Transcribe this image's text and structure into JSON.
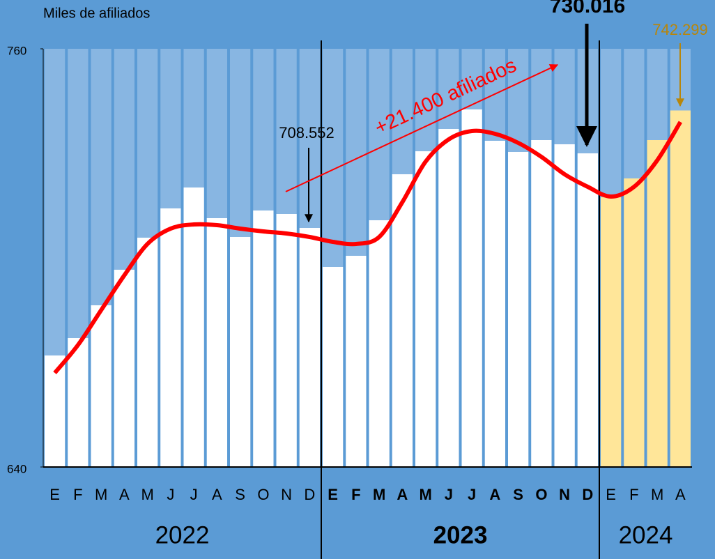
{
  "chart_data": {
    "type": "bar",
    "y_axis_label": "Miles de afiliados",
    "ylim": [
      640,
      760
    ],
    "yticks": [
      640,
      760
    ],
    "groups": [
      {
        "label": "2022",
        "color": "#ffffff",
        "bold": false,
        "categories": [
          "E",
          "F",
          "M",
          "A",
          "M",
          "J",
          "J",
          "A",
          "S",
          "O",
          "N",
          "D"
        ],
        "values": [
          672,
          677,
          686.4,
          696.6,
          705.8,
          714.2,
          720.2,
          711.4,
          706,
          713.6,
          712.6,
          708.6
        ]
      },
      {
        "label": "2023",
        "color": "#ffffff",
        "bold": true,
        "categories": [
          "E",
          "F",
          "M",
          "A",
          "M",
          "J",
          "J",
          "A",
          "S",
          "O",
          "N",
          "D"
        ],
        "values": [
          697.4,
          700.6,
          710.8,
          724,
          730.6,
          737,
          742.6,
          733.6,
          730.4,
          733.8,
          732.6,
          730
        ]
      },
      {
        "label": "2024",
        "color": "#ffe699",
        "bold": false,
        "categories": [
          "E",
          "F",
          "M",
          "A"
        ],
        "values": [
          717.4,
          722.8,
          733.8,
          742.3
        ]
      }
    ],
    "trend": {
      "color": "#ff0000",
      "values": [
        667,
        675,
        685,
        695,
        704,
        708.4,
        709.6,
        709.4,
        708.4,
        707.6,
        707,
        706,
        704.6,
        704,
        706,
        716,
        727.6,
        734,
        736.4,
        735.6,
        733,
        729,
        724,
        720.4,
        717.6,
        720.4,
        728,
        739
      ]
    },
    "annotations": [
      {
        "text": "708.552",
        "color": "#000000",
        "bold": false
      },
      {
        "text": "730.016",
        "color": "#000000",
        "bold": true
      },
      {
        "text": "742.299",
        "color": "#b8860b",
        "bold": false
      },
      {
        "text": "+21.400 afiliados",
        "color": "#ff0000",
        "bold": false
      }
    ]
  }
}
